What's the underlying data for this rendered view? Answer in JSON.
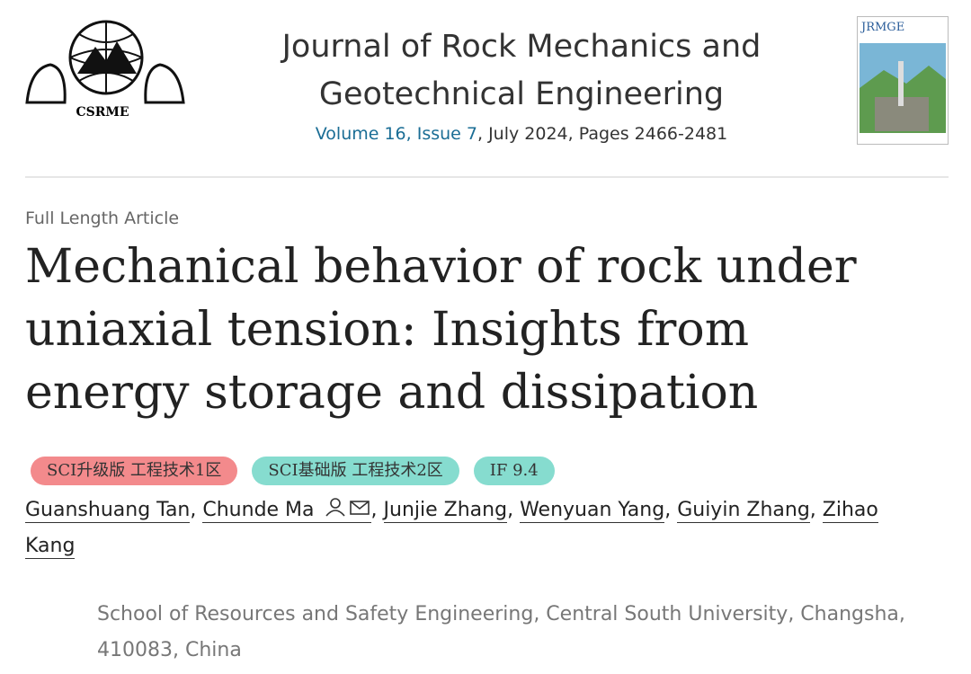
{
  "header": {
    "logo_text": "CSRME",
    "journal_title_lines": [
      "Journal of Rock Mechanics and",
      "Geotechnical Engineering"
    ],
    "volume_link": "Volume 16, Issue 7",
    "volume_rest": ", July 2024, Pages 2466-2481",
    "cover_title": "JRMGE"
  },
  "article": {
    "type": "Full Length Article",
    "title": "Mechanical behavior of rock under uniaxial tension: Insights from energy storage and dissipation",
    "badges": [
      "SCI升级版 工程技术1区",
      "SCI基础版 工程技术2区",
      "IF 9.4"
    ],
    "authors": [
      "Guanshuang Tan",
      "Chunde Ma",
      "Junjie Zhang",
      "Wenyuan Yang",
      "Guiyin Zhang",
      "Zihao Kang"
    ],
    "separator": ",",
    "affiliation": "School of Resources and Safety Engineering, Central South University, Changsha, 410083, China"
  }
}
